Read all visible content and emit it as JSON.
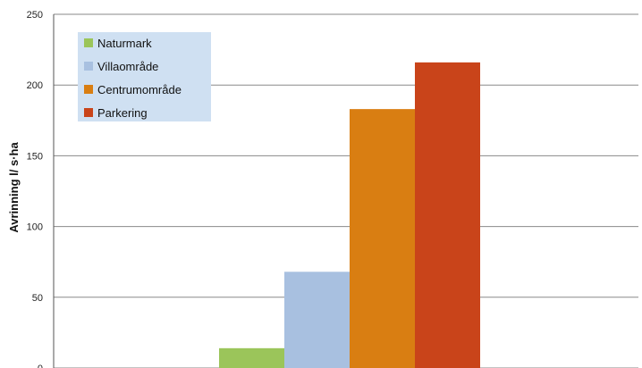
{
  "chart_data": {
    "type": "bar",
    "title": "",
    "xlabel": "",
    "ylabel": "Avrinning l/ s·ha",
    "ylim": [
      0,
      250
    ],
    "yticks": [
      0,
      50,
      100,
      150,
      200,
      250
    ],
    "grid": true,
    "legend_position": "top-left",
    "series": [
      {
        "name": "Naturmark",
        "value": 14,
        "color": "#9bc55a"
      },
      {
        "name": "Villaområde",
        "value": 68,
        "color": "#a8c0e0"
      },
      {
        "name": "Centrumområde",
        "value": 183,
        "color": "#d97e12"
      },
      {
        "name": "Parkering",
        "value": 216,
        "color": "#c9441a"
      }
    ],
    "colors": {
      "legend_background": "#cfe0f2",
      "gridline": "#8a8a8a",
      "axis": "#555555"
    }
  }
}
